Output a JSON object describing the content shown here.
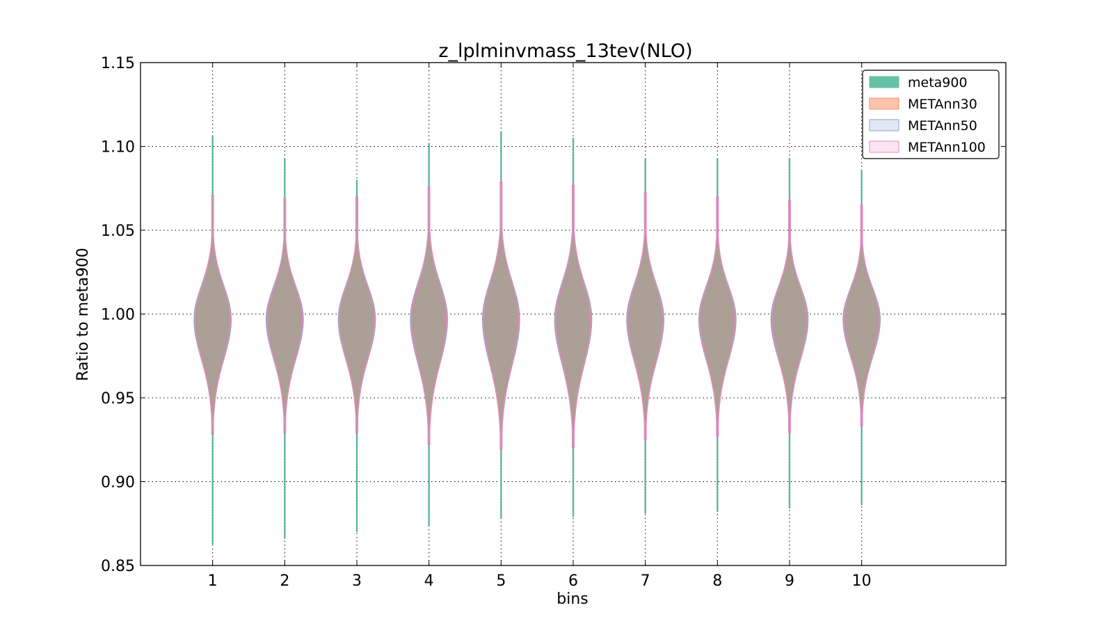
{
  "chart_data": {
    "type": "violin",
    "title": "z_lplminvmass_13tev(NLO)",
    "xlabel": "bins",
    "ylabel": "Ratio to meta900",
    "categories": [
      "1",
      "2",
      "3",
      "4",
      "5",
      "6",
      "7",
      "8",
      "9",
      "10"
    ],
    "x": [
      1,
      2,
      3,
      4,
      5,
      6,
      7,
      8,
      9,
      10
    ],
    "xlim": [
      0,
      12
    ],
    "ylim": [
      0.85,
      1.15
    ],
    "yticks": [
      "0.85",
      "0.90",
      "0.95",
      "1.00",
      "1.05",
      "1.10",
      "1.15"
    ],
    "grid": true,
    "legend_position": "top-right",
    "series": [
      {
        "name": "meta900",
        "color": "#66c2a5",
        "min": [
          0.862,
          0.866,
          0.87,
          0.874,
          0.878,
          0.879,
          0.881,
          0.882,
          0.884,
          0.886
        ],
        "max": [
          1.106,
          1.093,
          1.08,
          1.102,
          1.109,
          1.105,
          1.093,
          1.093,
          1.093,
          1.086
        ]
      },
      {
        "name": "METAnn30",
        "color": "#fc8d62",
        "min": [
          0.93,
          0.931,
          0.931,
          0.924,
          0.921,
          0.922,
          0.927,
          0.929,
          0.931,
          0.935
        ],
        "max": [
          1.07,
          1.068,
          1.069,
          1.075,
          1.078,
          1.076,
          1.072,
          1.069,
          1.067,
          1.064
        ]
      },
      {
        "name": "METAnn50",
        "color": "#8da0cb",
        "min": [
          0.929,
          0.93,
          0.93,
          0.923,
          0.92,
          0.921,
          0.926,
          0.928,
          0.93,
          0.934
        ],
        "max": [
          1.071,
          1.069,
          1.07,
          1.076,
          1.079,
          1.077,
          1.073,
          1.07,
          1.068,
          1.065
        ]
      },
      {
        "name": "METAnn100",
        "color": "#e78ac3",
        "min": [
          0.928,
          0.929,
          0.929,
          0.922,
          0.919,
          0.92,
          0.925,
          0.927,
          0.929,
          0.933
        ],
        "max": [
          1.071,
          1.069,
          1.07,
          1.076,
          1.079,
          1.077,
          1.073,
          1.07,
          1.068,
          1.065
        ]
      }
    ],
    "body_color": "#ab9f96"
  }
}
